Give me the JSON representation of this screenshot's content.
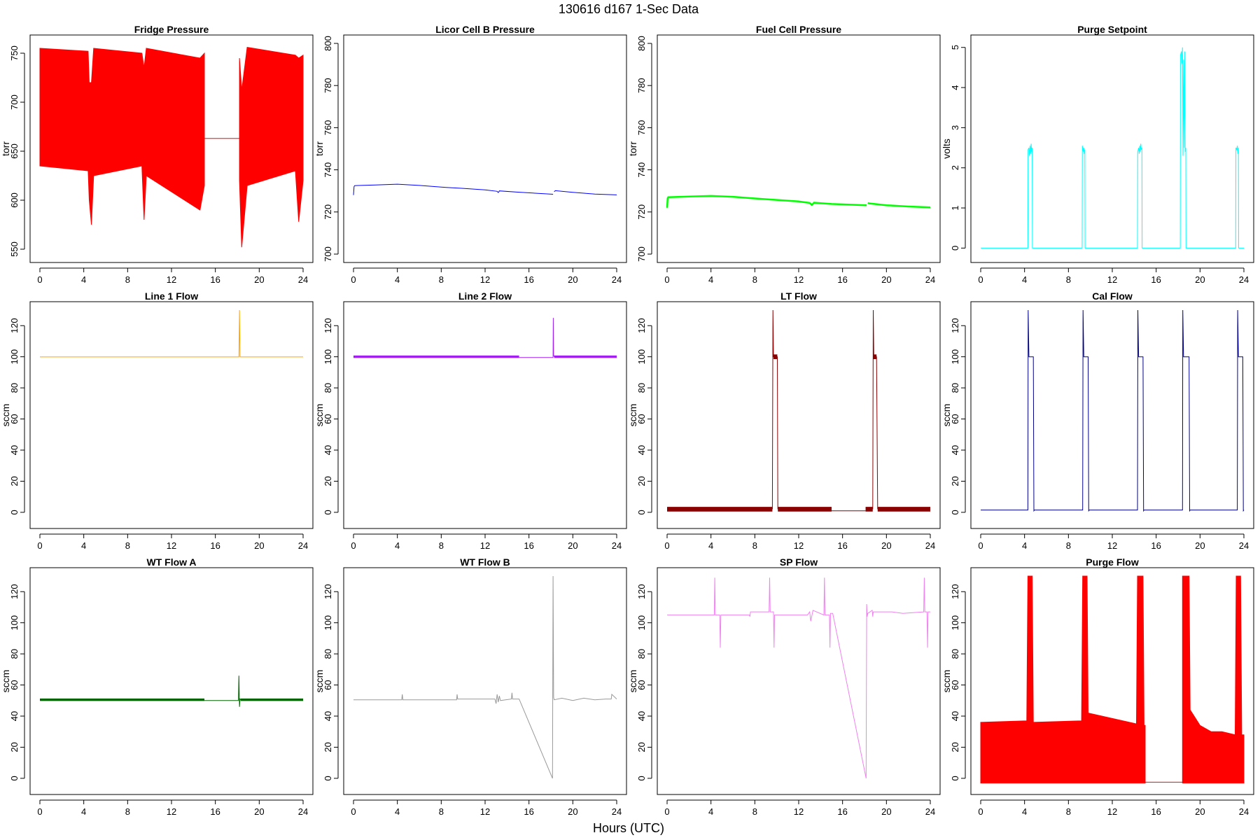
{
  "header": {
    "title": "130616   d167   1-Sec Data",
    "xlabel": "Hours (UTC)"
  },
  "chart_data": [
    {
      "type": "line",
      "title": "Fridge Pressure",
      "ylabel": "torr",
      "color": "#ff0000",
      "xlim": [
        0,
        24
      ],
      "ylim": [
        545,
        760
      ],
      "xticks": [
        0,
        4,
        8,
        12,
        16,
        20,
        24
      ],
      "yticks": [
        550,
        600,
        650,
        700,
        750
      ],
      "style": "band",
      "bands": [
        {
          "x": [
            0,
            4.4,
            4.5,
            4.7,
            4.9,
            9.3,
            9.5,
            9.7,
            14.6,
            15.0
          ],
          "lo": [
            635,
            630,
            600,
            575,
            625,
            635,
            580,
            625,
            590,
            615
          ],
          "hi": [
            755,
            752,
            720,
            720,
            755,
            750,
            735,
            755,
            745,
            750
          ]
        },
        {
          "x": [
            18.2,
            18.4,
            18.9,
            23.3,
            23.6,
            24
          ],
          "lo": [
            620,
            552,
            615,
            630,
            578,
            620
          ],
          "hi": [
            745,
            712,
            756,
            748,
            745,
            748
          ]
        }
      ],
      "lines": [
        {
          "x": [
            15,
            18.2
          ],
          "y": [
            663,
            663
          ]
        }
      ]
    },
    {
      "type": "line",
      "title": "Licor Cell B Pressure",
      "ylabel": "torr",
      "color": "#0000ff",
      "xlim": [
        0,
        24
      ],
      "ylim": [
        700,
        800
      ],
      "xticks": [
        0,
        4,
        8,
        12,
        16,
        20,
        24
      ],
      "yticks": [
        700,
        720,
        740,
        760,
        780,
        800
      ],
      "style": "line",
      "lines": [
        {
          "x": [
            0,
            0.05,
            0.1,
            2,
            4,
            6,
            8,
            10,
            12,
            13.1,
            13.2,
            13.3,
            15,
            18.2
          ],
          "y": [
            728,
            732,
            732.5,
            732.8,
            733.2,
            732.6,
            731.8,
            731.2,
            730.5,
            729.8,
            729.2,
            730.0,
            729.4,
            728.4
          ]
        },
        {
          "x": [
            18.3,
            18.4,
            20,
            22,
            24
          ],
          "y": [
            729.6,
            730.1,
            729.3,
            728.5,
            728.1
          ]
        }
      ]
    },
    {
      "type": "line",
      "title": "Fuel Cell Pressure",
      "ylabel": "torr",
      "color": "#00ff00",
      "xlim": [
        0,
        24
      ],
      "ylim": [
        700,
        800
      ],
      "xticks": [
        0,
        4,
        8,
        12,
        16,
        20,
        24
      ],
      "yticks": [
        700,
        720,
        740,
        760,
        780,
        800
      ],
      "style": "thick",
      "lines": [
        {
          "x": [
            0,
            0.05,
            0.1,
            2,
            4,
            6,
            8,
            10,
            12,
            13,
            13.2,
            13.4,
            15,
            18.2
          ],
          "y": [
            722,
            726.5,
            727,
            727.3,
            727.6,
            727.2,
            726.4,
            725.7,
            725.0,
            724.3,
            723.3,
            724.4,
            723.8,
            723.2
          ]
        },
        {
          "x": [
            18.3,
            18.4,
            20,
            22,
            24
          ],
          "y": [
            724.3,
            724.1,
            723.2,
            722.6,
            722.2
          ]
        }
      ]
    },
    {
      "type": "line",
      "title": "Purge Setpoint",
      "ylabel": "volts",
      "color": "#00ffff",
      "xlim": [
        0,
        24
      ],
      "ylim": [
        -0.15,
        5.1
      ],
      "xticks": [
        0,
        4,
        8,
        12,
        16,
        20,
        24
      ],
      "yticks": [
        0,
        1,
        2,
        3,
        4,
        5
      ],
      "style": "line",
      "lines": [
        {
          "x": [
            0,
            4.3,
            4.32,
            4.4,
            4.45,
            4.5,
            4.55,
            4.6,
            4.65,
            4.7,
            4.72,
            9.25,
            9.27,
            9.35,
            9.4,
            9.45,
            9.5,
            9.52,
            14.3,
            14.32,
            14.4,
            14.45,
            14.5,
            14.55,
            14.6,
            14.65,
            14.7,
            14.72,
            18.2,
            18.22,
            18.3,
            18.35,
            18.4,
            18.45,
            18.5,
            18.55,
            18.6,
            18.65,
            18.7,
            18.72,
            23.25,
            23.27,
            23.35,
            23.4,
            23.45,
            23.5,
            23.52,
            24
          ],
          "y": [
            0,
            0,
            2.45,
            2.5,
            2.3,
            2.55,
            2.35,
            2.6,
            2.4,
            2.5,
            0,
            0,
            2.55,
            2.4,
            2.5,
            2.35,
            2.45,
            0,
            0,
            2.4,
            2.5,
            2.35,
            2.55,
            2.4,
            2.6,
            2.45,
            2.5,
            0,
            0,
            4.8,
            4.9,
            4.6,
            5.0,
            2.3,
            4.7,
            2.5,
            4.9,
            2.4,
            2.5,
            0,
            0,
            2.5,
            2.45,
            2.55,
            2.35,
            2.5,
            0,
            0
          ]
        }
      ]
    },
    {
      "type": "line",
      "title": "Line 1 Flow",
      "ylabel": "sccm",
      "color": "#ffa500",
      "xlim": [
        0,
        24
      ],
      "ylim": [
        -5,
        130
      ],
      "xticks": [
        0,
        4,
        8,
        12,
        16,
        20,
        24
      ],
      "yticks": [
        0,
        20,
        40,
        60,
        80,
        100,
        120
      ],
      "style": "line",
      "lines": [
        {
          "x": [
            0,
            18.15,
            18.2,
            18.25,
            24
          ],
          "y": [
            99.9,
            99.9,
            130,
            99.9,
            99.9
          ]
        }
      ]
    },
    {
      "type": "line",
      "title": "Line 2 Flow",
      "ylabel": "sccm",
      "color": "#a020f0",
      "xlim": [
        0,
        24
      ],
      "ylim": [
        -5,
        130
      ],
      "xticks": [
        0,
        4,
        8,
        12,
        16,
        20,
        24
      ],
      "yticks": [
        0,
        20,
        40,
        60,
        80,
        100,
        120
      ],
      "style": "line",
      "thick_segments": [
        {
          "x": [
            0,
            15.1
          ],
          "y": [
            100,
            100
          ]
        },
        {
          "x": [
            18.3,
            24
          ],
          "y": [
            100,
            100
          ]
        }
      ],
      "lines": [
        {
          "x": [
            15.1,
            18.2,
            18.22,
            18.25,
            18.3
          ],
          "y": [
            99.5,
            99.5,
            125,
            101,
            100
          ]
        }
      ]
    },
    {
      "type": "line",
      "title": "LT Flow",
      "ylabel": "sccm",
      "color": "#8b0000",
      "xlim": [
        0,
        24
      ],
      "ylim": [
        -5,
        130
      ],
      "xticks": [
        0,
        4,
        8,
        12,
        16,
        20,
        24
      ],
      "yticks": [
        0,
        20,
        40,
        60,
        80,
        100,
        120
      ],
      "style": "line",
      "blocks": [
        {
          "x0": 0,
          "x1": 9.6,
          "y0": 0.5,
          "y1": 3.5
        },
        {
          "x0": 9.7,
          "x1": 10.05,
          "y0": 98.5,
          "y1": 101.5
        },
        {
          "x0": 10.1,
          "x1": 15.0,
          "y0": 0.5,
          "y1": 3.5
        },
        {
          "x0": 18.1,
          "x1": 18.75,
          "y0": 0.5,
          "y1": 3.5
        },
        {
          "x0": 18.8,
          "x1": 19.1,
          "y0": 98.5,
          "y1": 101.5
        },
        {
          "x0": 19.2,
          "x1": 24,
          "y0": 0.5,
          "y1": 3.5
        }
      ],
      "lines": [
        {
          "x": [
            9.6,
            9.65,
            9.7,
            10.05,
            10.1
          ],
          "y": [
            2,
            130,
            100,
            100,
            2
          ]
        },
        {
          "x": [
            15.0,
            18.1
          ],
          "y": [
            1,
            1
          ]
        },
        {
          "x": [
            18.75,
            18.8,
            18.85,
            19.1,
            19.2
          ],
          "y": [
            2,
            130,
            100,
            100,
            2
          ]
        }
      ]
    },
    {
      "type": "line",
      "title": "Cal Flow",
      "ylabel": "sccm",
      "color": "#00008b",
      "xlim": [
        0,
        24
      ],
      "ylim": [
        -5,
        130
      ],
      "xticks": [
        0,
        4,
        8,
        12,
        16,
        20,
        24
      ],
      "yticks": [
        0,
        20,
        40,
        60,
        80,
        100,
        120
      ],
      "style": "line",
      "lines": [
        {
          "x": [
            0,
            4.3,
            4.33,
            4.4,
            4.8,
            4.85,
            4.9,
            9.3,
            9.33,
            9.4,
            9.8,
            9.85,
            9.9,
            14.3,
            14.33,
            14.4,
            14.8,
            14.85,
            14.9,
            18.4,
            18.43,
            18.5,
            19.0,
            19.05,
            19.1,
            23.4,
            23.43,
            23.5,
            23.9,
            23.95,
            24
          ],
          "y": [
            1.5,
            1.5,
            130,
            100,
            100,
            1,
            1.5,
            1.5,
            130,
            100,
            100,
            1,
            1.5,
            1.5,
            130,
            100,
            100,
            1,
            1.5,
            1.5,
            130,
            100,
            100,
            1,
            1.5,
            1.5,
            130,
            100,
            100,
            1,
            1.5
          ]
        }
      ]
    },
    {
      "type": "line",
      "title": "WT Flow A",
      "ylabel": "sccm",
      "color": "#006400",
      "xlim": [
        0,
        24
      ],
      "ylim": [
        -5,
        130
      ],
      "xticks": [
        0,
        4,
        8,
        12,
        16,
        20,
        24
      ],
      "yticks": [
        0,
        20,
        40,
        60,
        80,
        100,
        120
      ],
      "style": "line",
      "thick_segments": [
        {
          "x": [
            0,
            15.0
          ],
          "y": [
            50.5,
            50.5
          ]
        },
        {
          "x": [
            18.3,
            24
          ],
          "y": [
            50.5,
            50.5
          ]
        }
      ],
      "lines": [
        {
          "x": [
            15.0,
            18.1,
            18.15,
            18.2,
            18.25,
            18.3
          ],
          "y": [
            50,
            50,
            66,
            46,
            51,
            50.5
          ]
        }
      ]
    },
    {
      "type": "line",
      "title": "WT Flow B",
      "ylabel": "sccm",
      "color": "#999999",
      "xlim": [
        0,
        24
      ],
      "ylim": [
        -5,
        130
      ],
      "xticks": [
        0,
        4,
        8,
        12,
        16,
        20,
        24
      ],
      "yticks": [
        0,
        20,
        40,
        60,
        80,
        100,
        120
      ],
      "style": "line",
      "lines": [
        {
          "x": [
            0,
            4.4,
            4.45,
            4.5,
            9.4,
            9.45,
            9.5,
            12.9,
            13.0,
            13.1,
            13.2,
            13.3,
            13.4,
            14.4,
            14.45,
            14.5,
            15.1,
            18.15,
            18.2,
            18.25,
            18.3,
            19,
            20,
            21,
            22,
            23,
            23.5,
            23.55,
            24
          ],
          "y": [
            50.5,
            50.5,
            54,
            50.5,
            50.5,
            54,
            51,
            51,
            48,
            54,
            49,
            53,
            50,
            51,
            55,
            51,
            51,
            0,
            130,
            52,
            50.5,
            51.5,
            50,
            51.5,
            50.5,
            51,
            51,
            54,
            51
          ]
        }
      ]
    },
    {
      "type": "line",
      "title": "SP Flow",
      "ylabel": "sccm",
      "color": "#ee82ee",
      "xlim": [
        0,
        24
      ],
      "ylim": [
        -5,
        130
      ],
      "xticks": [
        0,
        4,
        8,
        12,
        16,
        20,
        24
      ],
      "yticks": [
        0,
        20,
        40,
        60,
        80,
        100,
        120
      ],
      "style": "line",
      "lines": [
        {
          "x": [
            0,
            2,
            4.3,
            4.35,
            4.4,
            4.8,
            4.85,
            4.9,
            7.5,
            7.55,
            7.6,
            9.3,
            9.35,
            9.4,
            9.7,
            9.75,
            9.8,
            12.8,
            13,
            13.1,
            13.3,
            14.3,
            14.35,
            14.4,
            14.8,
            14.85,
            14.9,
            15.1,
            18.15,
            18.2,
            18.25,
            18.3,
            18.7,
            18.75,
            18.8,
            20.5,
            21.5,
            23.4,
            23.45,
            23.5,
            23.7,
            23.75,
            23.8,
            24
          ],
          "y": [
            105,
            105,
            105,
            129,
            105,
            105,
            84,
            105,
            105,
            104,
            107,
            107,
            129,
            107,
            107,
            84,
            105,
            105,
            107,
            101,
            108,
            105,
            129,
            105,
            105,
            84,
            106,
            106,
            0,
            112,
            104,
            106,
            108,
            104,
            107,
            107,
            106,
            107,
            129,
            107,
            107,
            84,
            107,
            107
          ]
        }
      ]
    },
    {
      "type": "line",
      "title": "Purge Flow",
      "ylabel": "sccm",
      "color": "#ff0000",
      "xlim": [
        0,
        24
      ],
      "ylim": [
        -5,
        130
      ],
      "xticks": [
        0,
        4,
        8,
        12,
        16,
        20,
        24
      ],
      "yticks": [
        0,
        20,
        40,
        60,
        80,
        100,
        120
      ],
      "style": "band",
      "bands": [
        {
          "x": [
            0,
            4.2,
            4.3,
            4.7,
            4.8,
            9.2,
            9.3,
            9.7,
            9.8,
            14.2,
            14.3,
            14.8,
            14.9,
            15.0
          ],
          "lo": [
            -3,
            -3,
            -3,
            -3,
            -3,
            -3,
            -3,
            -3,
            -3,
            -3,
            -3,
            -3,
            -3,
            -3
          ],
          "hi": [
            36,
            37,
            130,
            130,
            36,
            37,
            130,
            130,
            42,
            35,
            130,
            130,
            34,
            34
          ]
        },
        {
          "x": [
            18.4,
            18.5,
            19.0,
            19.1,
            20.0,
            21.0,
            22.0,
            23.2,
            23.3,
            23.7,
            23.8,
            24
          ],
          "lo": [
            -3,
            -3,
            -3,
            -3,
            -3,
            -3,
            -3,
            -3,
            -3,
            -3,
            -3,
            -3
          ],
          "hi": [
            130,
            130,
            130,
            44,
            34,
            30,
            30,
            28,
            130,
            130,
            28,
            28
          ]
        }
      ],
      "lines": [
        {
          "x": [
            15.0,
            18.4
          ],
          "y": [
            -2.5,
            -2.5
          ]
        }
      ]
    }
  ]
}
